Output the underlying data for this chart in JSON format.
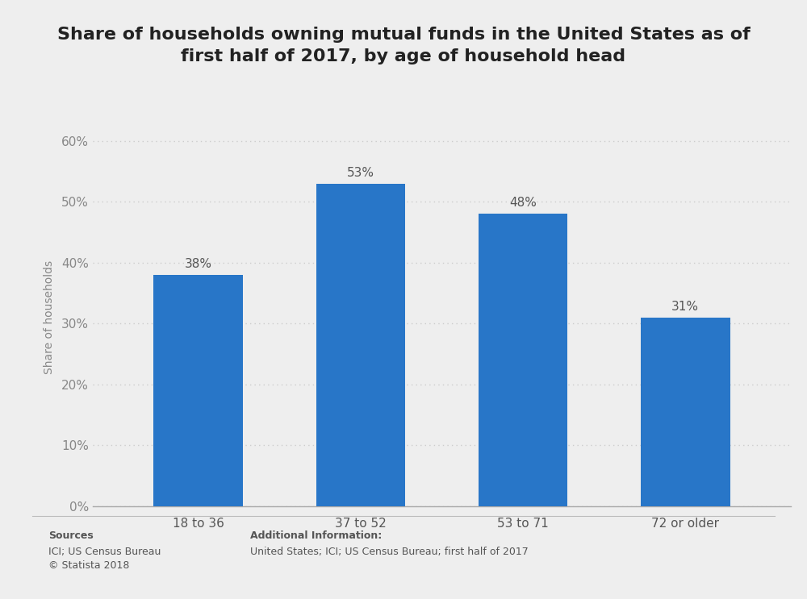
{
  "title": "Share of households owning mutual funds in the United States as of\nfirst half of 2017, by age of household head",
  "categories": [
    "18 to 36",
    "37 to 52",
    "53 to 71",
    "72 or older"
  ],
  "values": [
    0.38,
    0.53,
    0.48,
    0.31
  ],
  "labels": [
    "38%",
    "53%",
    "48%",
    "31%"
  ],
  "bar_color": "#2876c8",
  "ylabel": "Share of households",
  "ylim": [
    0,
    0.62
  ],
  "yticks": [
    0,
    0.1,
    0.2,
    0.3,
    0.4,
    0.5,
    0.6
  ],
  "ytick_labels": [
    "0%",
    "10%",
    "20%",
    "30%",
    "40%",
    "50%",
    "60%"
  ],
  "background_color": "#eeeeee",
  "grid_color": "#cccccc",
  "title_fontsize": 16,
  "axis_label_fontsize": 10,
  "tick_fontsize": 11,
  "bar_label_fontsize": 11,
  "sources_line1": "Sources",
  "sources_line2": "ICI; US Census Bureau",
  "sources_line3": "© Statista 2018",
  "additional_info_title": "Additional Information:",
  "additional_info_text": "United States; ICI; US Census Bureau; first half of 2017"
}
